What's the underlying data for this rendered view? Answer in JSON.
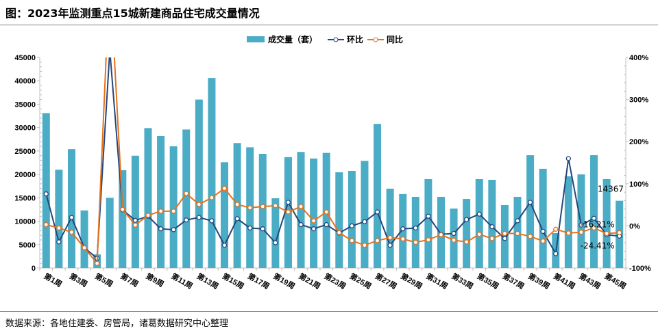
{
  "title": "图：2023年监测重点15城新建商品住宅成交量情况",
  "source": "数据来源：各地住建委、房管局，诸葛数据研究中心整理",
  "chart_data": {
    "type": "bar+line",
    "title": "图：2023年监测重点15城新建商品住宅成交量情况",
    "categories": [
      "第1周",
      "第2周",
      "第3周",
      "第4周",
      "第5周",
      "第6周",
      "第7周",
      "第8周",
      "第9周",
      "第10周",
      "第11周",
      "第12周",
      "第13周",
      "第14周",
      "第15周",
      "第16周",
      "第17周",
      "第18周",
      "第19周",
      "第20周",
      "第21周",
      "第22周",
      "第23周",
      "第24周",
      "第25周",
      "第26周",
      "第27周",
      "第28周",
      "第29周",
      "第30周",
      "第31周",
      "第32周",
      "第33周",
      "第34周",
      "第35周",
      "第36周",
      "第37周",
      "第38周",
      "第39周",
      "第40周",
      "第41周",
      "第42周",
      "第43周",
      "第44周",
      "第45周",
      "第46周"
    ],
    "x_tick_labels": [
      "第1周",
      "第3周",
      "第5周",
      "第7周",
      "第9周",
      "第11周",
      "第13周",
      "第15周",
      "第17周",
      "第19周",
      "第21周",
      "第23周",
      "第25周",
      "第27周",
      "第29周",
      "第31周",
      "第33周",
      "第35周",
      "第37周",
      "第39周",
      "第41周",
      "第43周",
      "第45周"
    ],
    "series": [
      {
        "name": "成交量（套）",
        "type": "bar",
        "axis": "left",
        "color": "#4BACC6",
        "values": [
          33100,
          21000,
          25400,
          12300,
          2900,
          15000,
          20900,
          24000,
          29900,
          28200,
          26000,
          29600,
          36000,
          40600,
          22600,
          26700,
          25800,
          24400,
          14900,
          23700,
          24800,
          23400,
          24600,
          20450,
          20750,
          22900,
          30800,
          16950,
          15800,
          15200,
          19000,
          15200,
          12700,
          14750,
          19000,
          18850,
          13450,
          15200,
          24100,
          21200,
          7450,
          19600,
          20000,
          24100,
          19000,
          14367
        ]
      },
      {
        "name": "环比",
        "type": "line",
        "axis": "right",
        "unit": "%",
        "color": "#24477A",
        "values": [
          76,
          -38,
          20,
          -52,
          -77,
          417,
          38,
          13,
          23,
          -7,
          -9,
          14,
          20,
          12,
          -46,
          17,
          -5,
          -7,
          -40,
          56,
          3,
          -7,
          3,
          -17,
          0,
          10,
          33,
          -46,
          -7,
          -5,
          23,
          -20,
          -18,
          15,
          28,
          -2,
          -30,
          12,
          56,
          -13,
          -66,
          160,
          2,
          18,
          -21,
          -24.41
        ]
      },
      {
        "name": "同比",
        "type": "line",
        "axis": "right",
        "unit": "%",
        "color": "#E8711A",
        "values": [
          3,
          -5,
          -15,
          -52,
          -89,
          600,
          39,
          2,
          25,
          35,
          35,
          77,
          51,
          67,
          89,
          51,
          43,
          46,
          48,
          33,
          46,
          12,
          33,
          -16,
          -35,
          -46,
          -35,
          -28,
          -31,
          -39,
          -33,
          -21,
          -34,
          -38,
          -20,
          -30,
          -18,
          -18,
          -25,
          -36,
          -8,
          -17,
          -15,
          -5,
          -18,
          -16.21
        ]
      }
    ],
    "left_axis": {
      "min": 0,
      "max": 45000,
      "step": 5000,
      "tick_labels": [
        "0",
        "5000",
        "10000",
        "15000",
        "20000",
        "25000",
        "30000",
        "35000",
        "40000",
        "45000"
      ]
    },
    "right_axis": {
      "min": -100,
      "max": 400,
      "step": 100,
      "tick_labels": [
        "-100%",
        "0%",
        "100%",
        "200%",
        "300%",
        "400%"
      ]
    },
    "data_labels": {
      "last_bar": "14367",
      "last_yoy": "-16.21%",
      "last_mom": "-24.41%"
    },
    "legend": {
      "position": "top",
      "items": [
        "成交量（套）",
        "环比",
        "同比"
      ]
    },
    "grid": false
  }
}
